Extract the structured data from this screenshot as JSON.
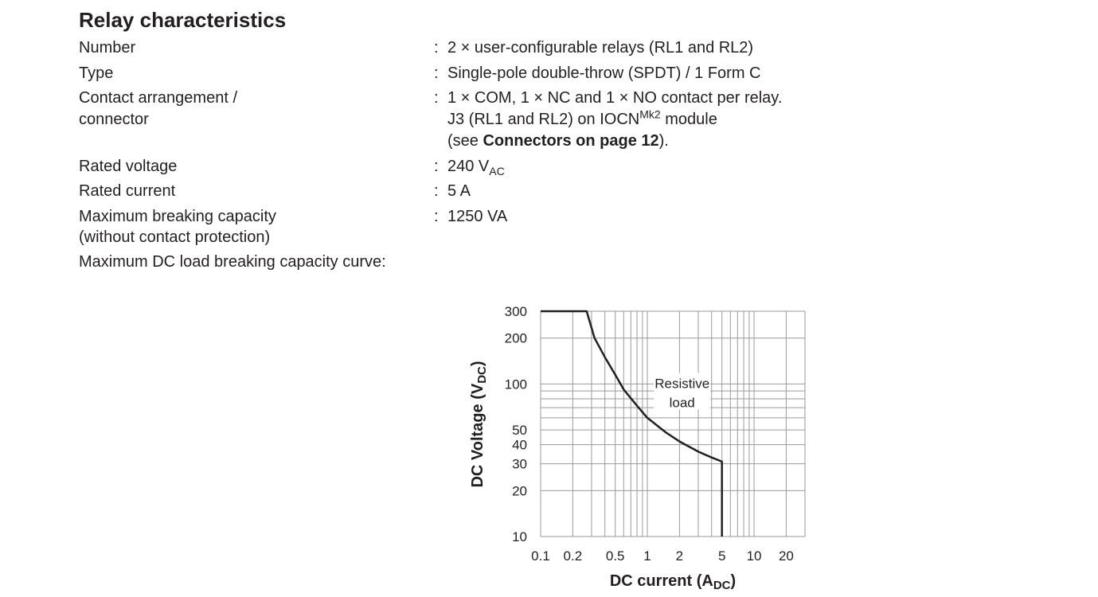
{
  "section": {
    "title": "Relay characteristics",
    "colon": ":",
    "rows": [
      {
        "label": "Number",
        "value": "2 × user-configurable relays (RL1 and RL2)"
      },
      {
        "label": "Type",
        "value": "Single-pole double-throw (SPDT) / 1 Form C"
      },
      {
        "label": "Contact arrangement /",
        "label2": "connector",
        "value": "1 × COM, 1 × NC and 1 × NO contact per relay.",
        "value2_pre": "J3 (RL1 and RL2) on IOCN",
        "value2_sup": "Mk2",
        "value2_post": " module",
        "value3_pre": "(see ",
        "value3_link": "Connectors on page 12",
        "value3_post": ")."
      },
      {
        "label": "Rated voltage",
        "value": "240 V",
        "value_sub": "AC"
      },
      {
        "label": "Rated current",
        "value": "5 A"
      },
      {
        "label": "Maximum breaking capacity",
        "label2": "(without contact protection)",
        "value": "1250 VA"
      },
      {
        "label": "Maximum DC load breaking capacity curve:"
      }
    ]
  },
  "chart_data": {
    "type": "line",
    "title": "Maximum DC load breaking capacity curve",
    "xlabel": "DC current (A",
    "xlabel_sub": "DC",
    "xlabel_end": ")",
    "ylabel": "DC Voltage (V",
    "ylabel_sub": "DC",
    "ylabel_end": ")",
    "xscale": "log",
    "yscale": "log",
    "xlim": [
      0.1,
      30
    ],
    "ylim": [
      10,
      300
    ],
    "xticks": [
      0.1,
      0.2,
      0.5,
      1,
      2,
      5,
      10,
      20
    ],
    "xtick_labels": [
      "0.1",
      "0.2",
      "0.5",
      "1",
      "2",
      "5",
      "10",
      "20"
    ],
    "yticks": [
      10,
      20,
      30,
      40,
      50,
      100,
      200,
      300
    ],
    "ytick_labels": [
      "10",
      "20",
      "30",
      "40",
      "50",
      "100",
      "200",
      "300"
    ],
    "grid": true,
    "annotation": [
      "Resistive",
      "load"
    ],
    "series": [
      {
        "name": "Resistive load",
        "x": [
          0.1,
          0.27,
          0.32,
          0.4,
          0.5,
          0.6,
          0.8,
          1,
          1.5,
          2,
          3,
          4,
          5,
          5
        ],
        "y": [
          300,
          300,
          200,
          150,
          115,
          92,
          72,
          60,
          48,
          42,
          36,
          33,
          31,
          10
        ]
      }
    ]
  }
}
